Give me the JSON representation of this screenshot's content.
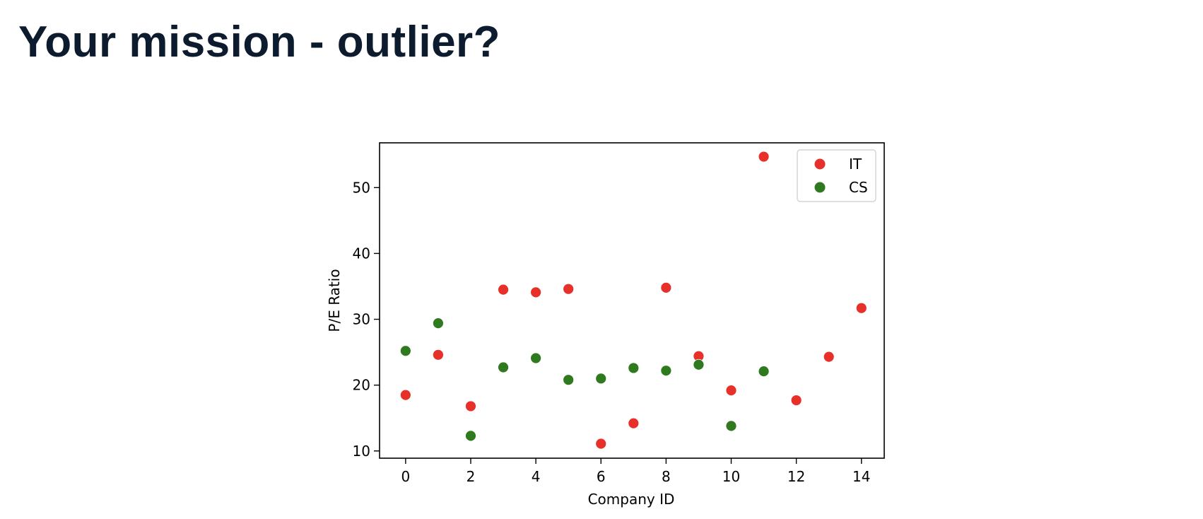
{
  "page": {
    "title": "Your mission - outlier?"
  },
  "chart_data": {
    "type": "scatter",
    "title": "",
    "xlabel": "Company ID",
    "ylabel": "P/E Ratio",
    "xlim": [
      -0.8,
      14.7
    ],
    "ylim": [
      8.9,
      56.8
    ],
    "xticks": [
      0,
      2,
      4,
      6,
      8,
      10,
      12,
      14
    ],
    "yticks": [
      10,
      20,
      30,
      40,
      50
    ],
    "grid": false,
    "legend_position": "top-right",
    "series": [
      {
        "name": "IT",
        "color": "#e8302a",
        "x": [
          0,
          1,
          2,
          3,
          4,
          5,
          6,
          7,
          8,
          9,
          10,
          11,
          12,
          13,
          14
        ],
        "y": [
          18.5,
          24.6,
          16.8,
          34.5,
          34.1,
          34.6,
          11.1,
          14.2,
          34.8,
          24.4,
          19.2,
          54.7,
          17.7,
          24.3,
          31.7
        ]
      },
      {
        "name": "CS",
        "color": "#2f7a1f",
        "x": [
          0,
          1,
          2,
          3,
          4,
          5,
          6,
          7,
          8,
          9,
          10,
          11
        ],
        "y": [
          25.2,
          29.4,
          12.3,
          22.7,
          24.1,
          20.8,
          21.0,
          22.6,
          22.2,
          23.1,
          13.8,
          22.1
        ]
      }
    ]
  }
}
